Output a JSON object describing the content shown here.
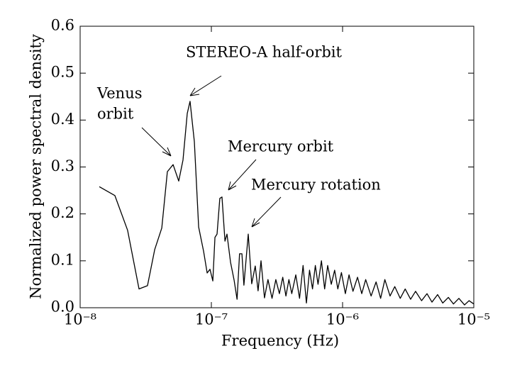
{
  "chart_data": {
    "type": "line",
    "xlabel": "Frequency (Hz)",
    "ylabel": "Normalized power spectral density",
    "xscale": "log",
    "color": "#000000",
    "xlim": [
      1e-08,
      1e-05
    ],
    "xticks": [
      {
        "value": 1e-08,
        "label": "10⁻⁸"
      },
      {
        "value": 1e-07,
        "label": "10⁻⁷"
      },
      {
        "value": 1e-06,
        "label": "10⁻⁶"
      },
      {
        "value": 1e-05,
        "label": "10⁻⁵"
      }
    ],
    "ylim": [
      0,
      0.6
    ],
    "yticks": [
      {
        "value": 0,
        "label": "0.0"
      },
      0.1,
      0.2,
      0.3,
      0.4,
      0.5,
      0.6
    ],
    "annotations": [
      [
        "STEREO-A half-orbit"
      ],
      [
        "Venus",
        "orbit"
      ],
      [
        "Mercury orbit"
      ],
      [
        "Mercury rotation"
      ]
    ],
    "x": [
      1.4e-08,
      1.84e-08,
      2.3e-08,
      2.81e-08,
      3.26e-08,
      3.7e-08,
      4.19e-08,
      4.62e-08,
      5.11e-08,
      5.64e-08,
      6.08e-08,
      6.55e-08,
      6.88e-08,
      7.42e-08,
      8e-08,
      8.73e-08,
      9.29e-08,
      9.76e-08,
      1.026e-07,
      1.065e-07,
      1.105e-07,
      1.16e-07,
      1.205e-07,
      1.27e-07,
      1.315e-07,
      1.4e-07,
      1.49e-07,
      1.57e-07,
      1.64e-07,
      1.71e-07,
      1.77e-07,
      1.91e-07,
      2.03e-07,
      2.16e-07,
      2.27e-07,
      2.39e-07,
      2.54e-07,
      2.7e-07,
      2.9e-07,
      3.1e-07,
      3.3e-07,
      3.5e-07,
      3.7e-07,
      3.9e-07,
      4.1e-07,
      4.4e-07,
      4.7e-07,
      5e-07,
      5.3e-07,
      5.6e-07,
      5.9e-07,
      6.2e-07,
      6.5e-07,
      6.9e-07,
      7.3e-07,
      7.7e-07,
      8.2e-07,
      8.7e-07,
      9.2e-07,
      9.8e-07,
      1.05e-06,
      1.12e-06,
      1.2e-06,
      1.3e-06,
      1.4e-06,
      1.5e-06,
      1.65e-06,
      1.8e-06,
      1.95e-06,
      2.1e-06,
      2.3e-06,
      2.5e-06,
      2.75e-06,
      3e-06,
      3.3e-06,
      3.6e-06,
      4e-06,
      4.4e-06,
      4.8e-06,
      5.3e-06,
      5.8e-06,
      6.4e-06,
      7e-06,
      7.7e-06,
      8.5e-06,
      9.2e-06,
      1e-05
    ],
    "values": [
      0.258,
      0.239,
      0.165,
      0.04,
      0.047,
      0.124,
      0.17,
      0.29,
      0.305,
      0.27,
      0.315,
      0.414,
      0.44,
      0.354,
      0.172,
      0.12,
      0.074,
      0.082,
      0.057,
      0.15,
      0.157,
      0.233,
      0.236,
      0.142,
      0.157,
      0.097,
      0.059,
      0.018,
      0.115,
      0.115,
      0.048,
      0.157,
      0.051,
      0.089,
      0.036,
      0.1,
      0.021,
      0.06,
      0.02,
      0.06,
      0.03,
      0.065,
      0.025,
      0.06,
      0.03,
      0.07,
      0.02,
      0.09,
      0.01,
      0.08,
      0.04,
      0.09,
      0.05,
      0.1,
      0.04,
      0.09,
      0.05,
      0.08,
      0.04,
      0.075,
      0.03,
      0.07,
      0.035,
      0.065,
      0.03,
      0.06,
      0.025,
      0.055,
      0.02,
      0.06,
      0.025,
      0.045,
      0.02,
      0.04,
      0.018,
      0.035,
      0.015,
      0.03,
      0.012,
      0.028,
      0.01,
      0.022,
      0.008,
      0.02,
      0.006,
      0.015,
      0.008
    ]
  }
}
